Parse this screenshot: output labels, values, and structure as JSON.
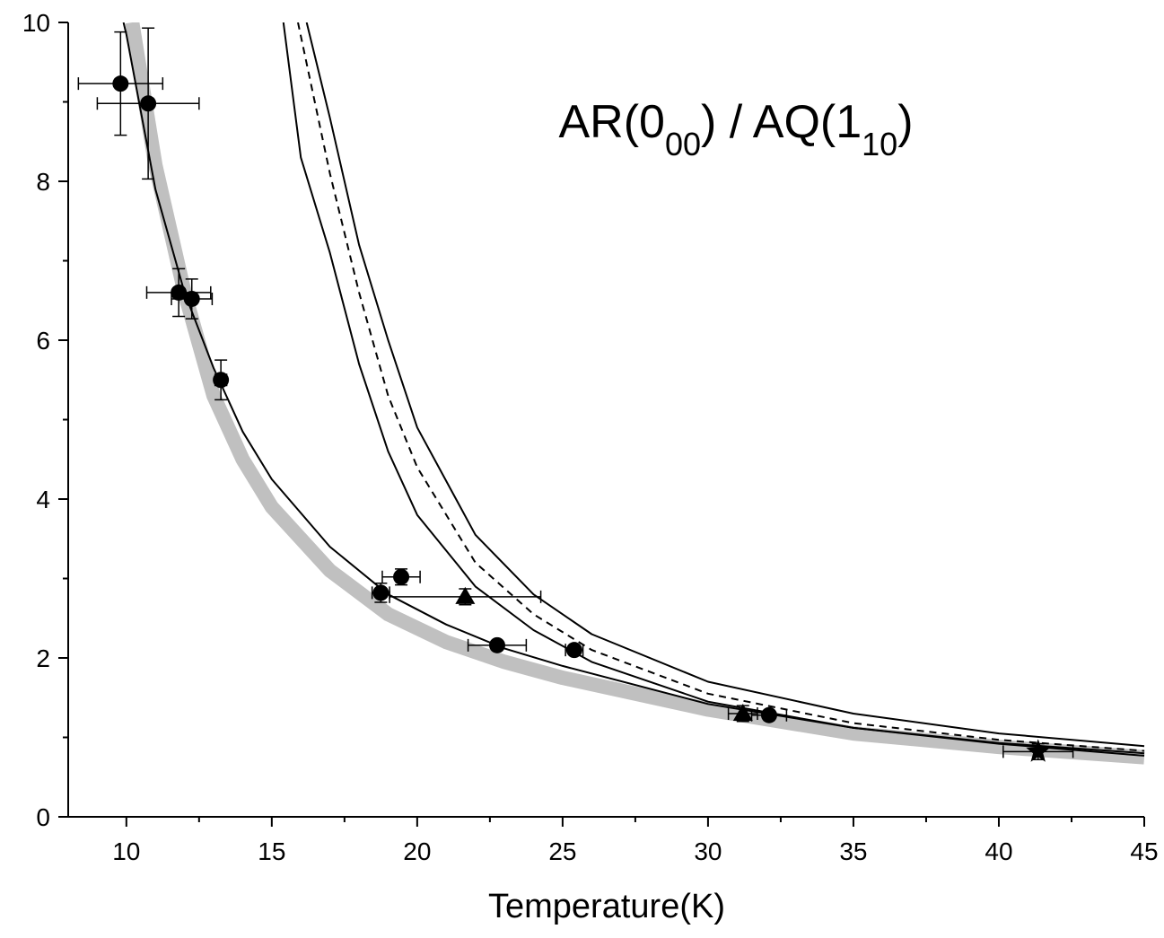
{
  "chart_data": {
    "type": "scatter",
    "annotation": [
      "AR(0",
      "00",
      ") / AQ(1",
      "10",
      ")"
    ],
    "x_label": "Temperature(K)",
    "xlim": [
      8,
      45
    ],
    "xticks": [
      10,
      15,
      20,
      25,
      30,
      35,
      40,
      45
    ],
    "ylim": [
      0,
      10
    ],
    "yticks": [
      0,
      2,
      4,
      6,
      8,
      10
    ],
    "grid": false,
    "lines": [
      {
        "style": "band",
        "color": "#c0c0c0",
        "x": [
          10.2,
          11,
          12,
          13,
          14,
          15,
          17,
          19,
          21,
          23,
          25,
          30,
          35,
          40,
          45
        ],
        "values": [
          10,
          8.2,
          6.6,
          5.3,
          4.5,
          3.9,
          3.1,
          2.55,
          2.2,
          1.95,
          1.75,
          1.35,
          1.05,
          0.88,
          0.75
        ]
      },
      {
        "style": "solid",
        "color": "#000000",
        "x": [
          9.9,
          10,
          11,
          12,
          13,
          14,
          15,
          17,
          19,
          21,
          23,
          25,
          30,
          35,
          40,
          45
        ],
        "values": [
          10,
          9.85,
          7.9,
          6.6,
          5.65,
          4.85,
          4.25,
          3.4,
          2.8,
          2.42,
          2.12,
          1.9,
          1.42,
          1.12,
          0.92,
          0.77
        ]
      },
      {
        "style": "solid",
        "color": "#000000",
        "x": [
          15.4,
          16,
          17,
          18,
          19,
          20,
          22,
          24,
          26,
          30,
          35,
          40,
          45
        ],
        "values": [
          10,
          8.3,
          7.1,
          5.7,
          4.6,
          3.8,
          2.9,
          2.35,
          1.95,
          1.45,
          1.12,
          0.93,
          0.8
        ]
      },
      {
        "style": "dashed",
        "color": "#000000",
        "x": [
          15.9,
          17,
          18,
          19,
          20,
          22,
          24,
          26,
          30,
          35,
          40,
          45
        ],
        "values": [
          10,
          8.1,
          6.6,
          5.3,
          4.4,
          3.2,
          2.55,
          2.1,
          1.55,
          1.18,
          0.97,
          0.83
        ]
      },
      {
        "style": "solid",
        "color": "#000000",
        "x": [
          16.2,
          17,
          18,
          19,
          20,
          22,
          24,
          26,
          30,
          35,
          40,
          45
        ],
        "values": [
          10,
          8.8,
          7.2,
          6,
          4.9,
          3.55,
          2.8,
          2.3,
          1.7,
          1.3,
          1.05,
          0.89
        ]
      }
    ],
    "series": [
      {
        "marker": "circle",
        "color": "#000000",
        "x": [
          9.8,
          10.75,
          11.8,
          12.25,
          13.25,
          18.75,
          19.45,
          22.75,
          25.4,
          32.1
        ],
        "values": [
          9.23,
          8.98,
          6.6,
          6.52,
          5.5,
          2.82,
          3.02,
          2.16,
          2.1,
          1.28
        ],
        "xerr": [
          1.45,
          1.75,
          1.1,
          0.7,
          0.2,
          0.3,
          0.65,
          1.0,
          0.3,
          0.6
        ],
        "yerr": [
          0.65,
          0.95,
          0.3,
          0.25,
          0.25,
          0.12,
          0.1,
          0.05,
          0.05,
          0.05
        ]
      },
      {
        "marker": "triangle",
        "color": "#000000",
        "x": [
          21.65,
          31.2
        ],
        "values": [
          2.77,
          1.3
        ],
        "xerr": [
          2.6,
          0.5
        ],
        "yerr": [
          0.1,
          0.1
        ]
      },
      {
        "marker": "star",
        "color": "#000000",
        "x": [
          41.35
        ],
        "values": [
          0.82
        ],
        "xerr": [
          1.2
        ],
        "yerr": [
          0.1
        ]
      }
    ]
  }
}
